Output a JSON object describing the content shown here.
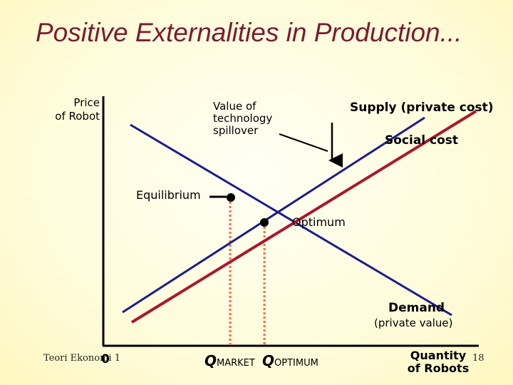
{
  "slide": {
    "title": "Positive Externalities in Production...",
    "footer_left": "Teori Ekonomi 1",
    "page_number": "18"
  },
  "diagram": {
    "y_axis_label": "Price\nof Robot",
    "x_axis_label": "Quantity\nof Robots",
    "origin": "0",
    "supply_label": "Supply (private cost)",
    "social_cost_label": "Social cost",
    "spillover_label": "Value of\ntechnology\nspillover",
    "equilibrium_label": "Equilibrium",
    "optimum_label": "Optimum",
    "demand_label": "Demand",
    "demand_sublabel": "(private value)",
    "q_market": {
      "letter": "Q",
      "sub": "MARKET"
    },
    "q_optimum": {
      "letter": "Q",
      "sub": "OPTIMUM"
    },
    "colors": {
      "demand": "#1c1c8c",
      "supply": "#1c1c8c",
      "social_cost": "#a8182c",
      "guides": "#ff6a3c",
      "title": "#7a1c2e",
      "axes": "#000000"
    }
  }
}
